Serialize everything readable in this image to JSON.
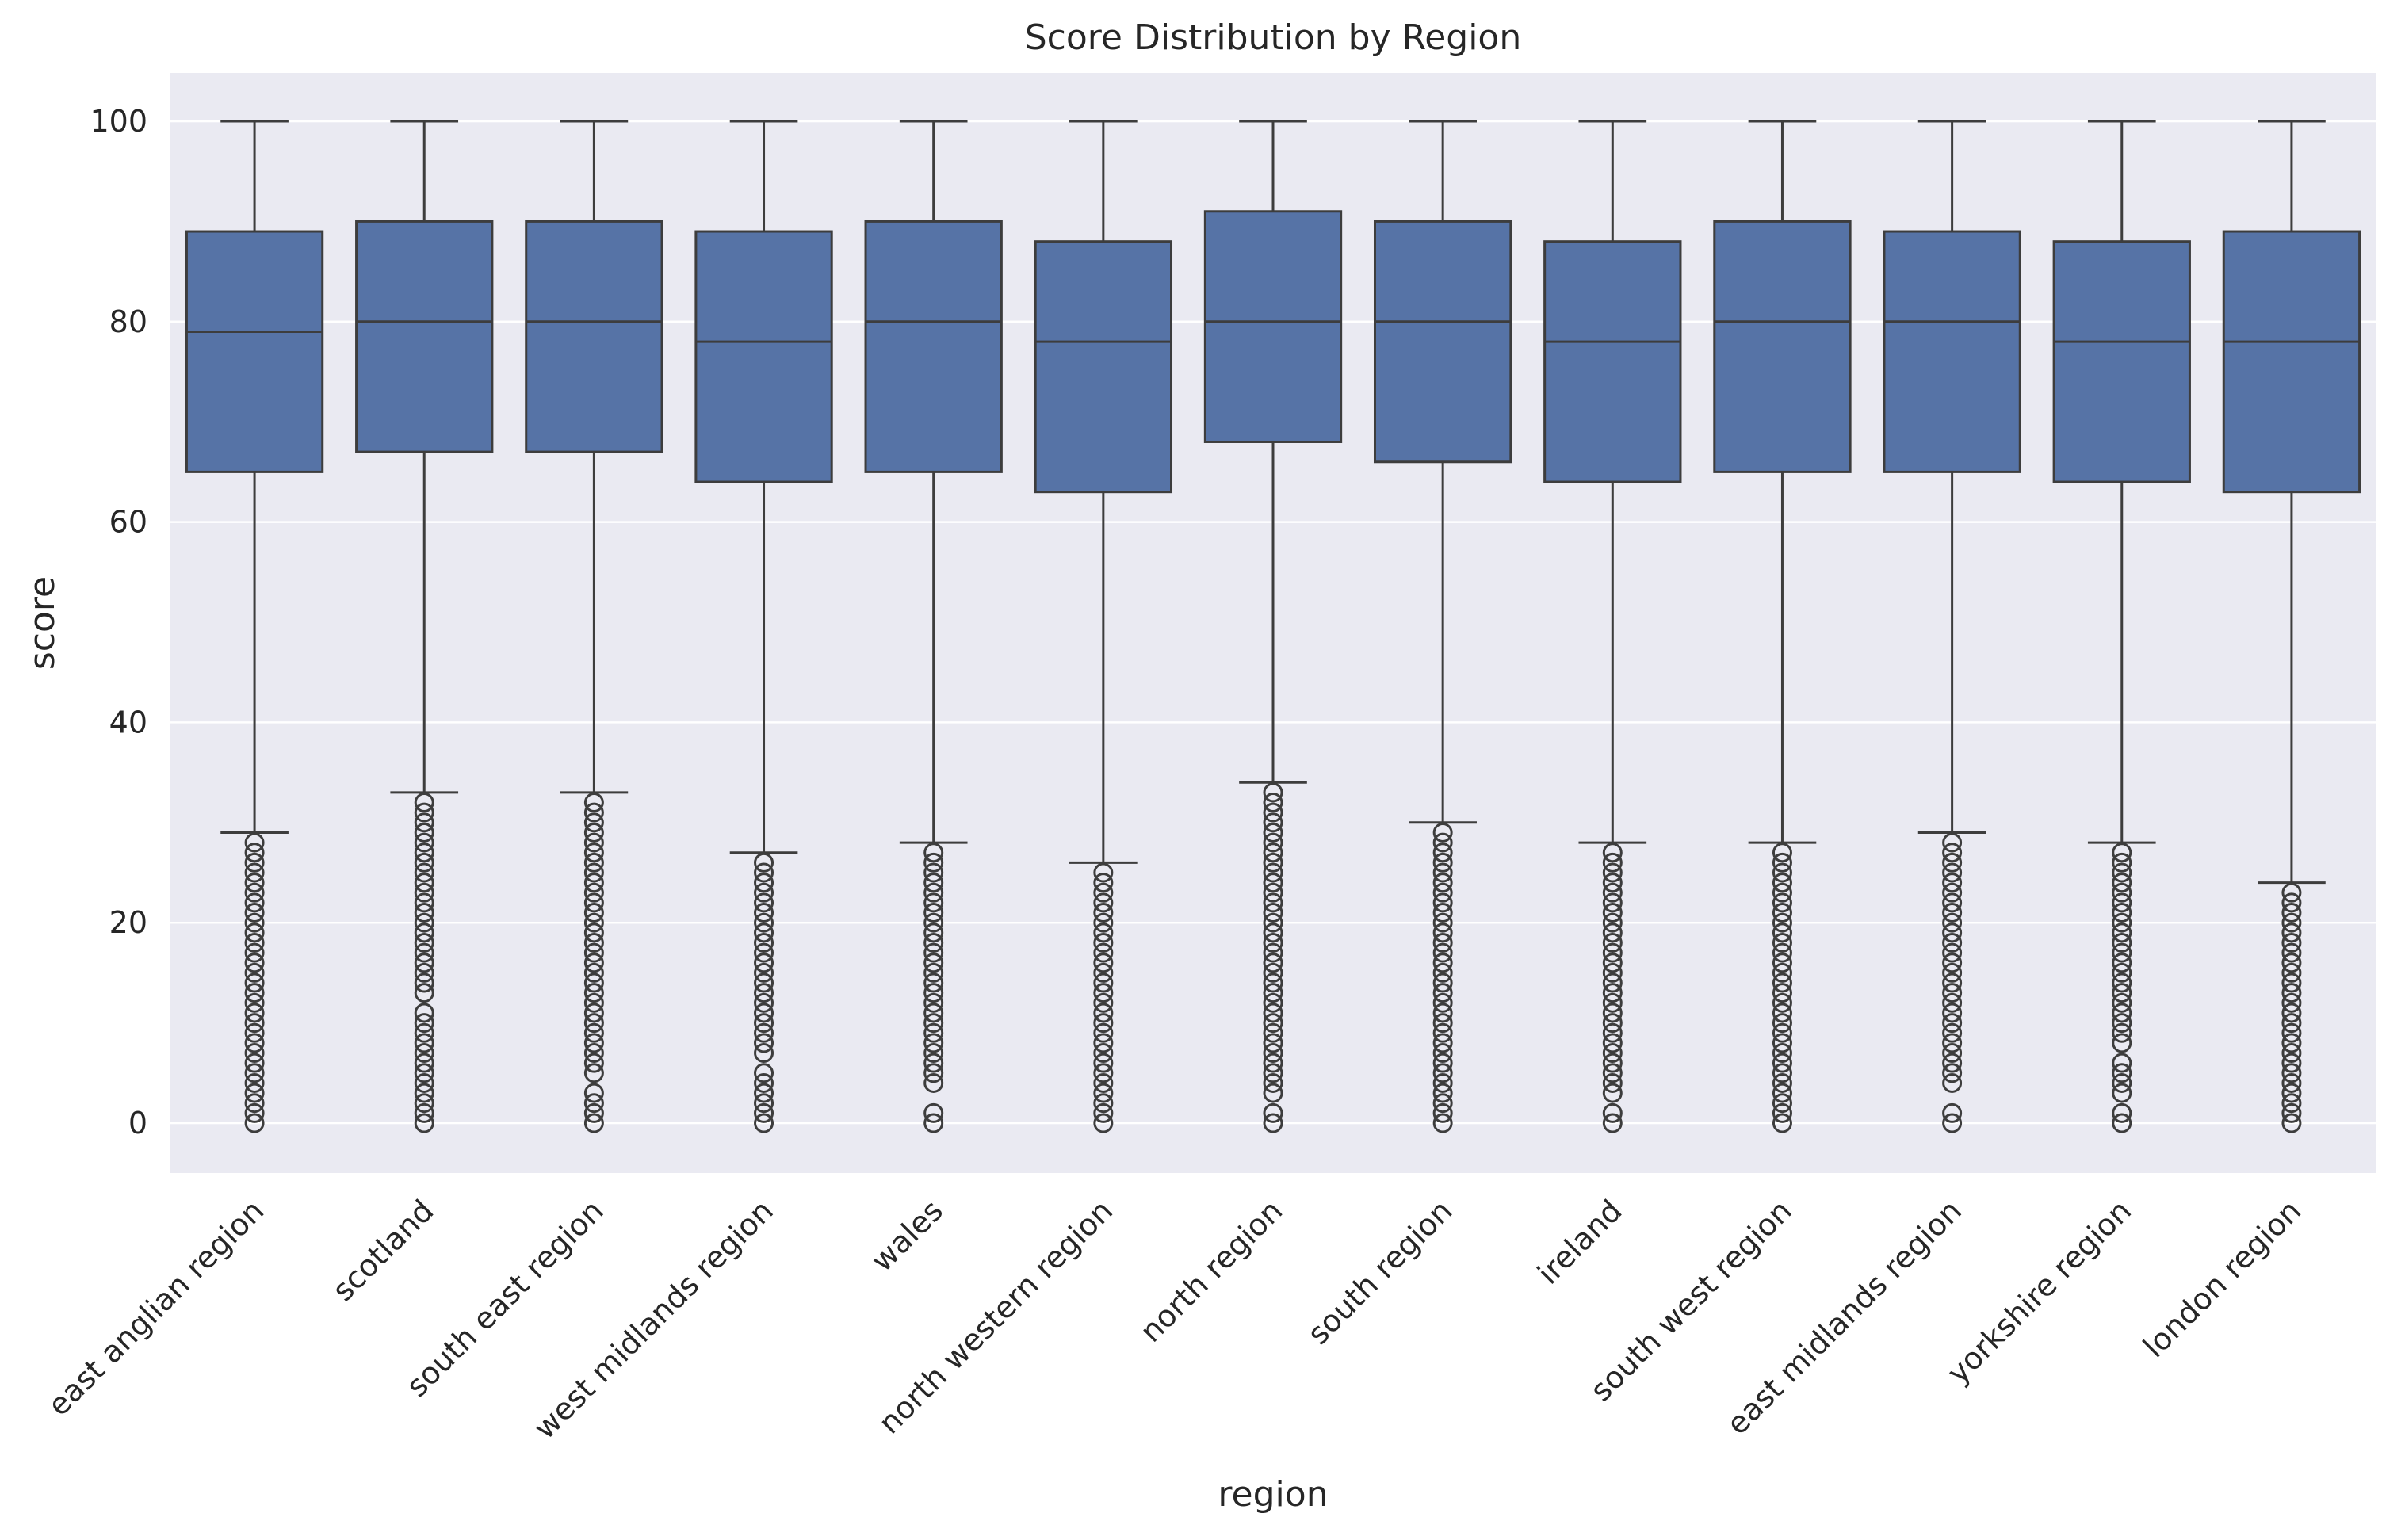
{
  "chart_data": {
    "type": "box",
    "title": "Score Distribution by Region",
    "xlabel": "region",
    "ylabel": "score",
    "ylim": [
      -5,
      105
    ],
    "yticks": [
      0,
      20,
      40,
      60,
      80,
      100
    ],
    "grid": true,
    "colors": {
      "box": "#5673a6",
      "edge": "#3d3d3d",
      "background": "#eaeaf2",
      "grid": "#ffffff"
    },
    "categories": [
      "east anglian region",
      "scotland",
      "south east region",
      "west midlands region",
      "wales",
      "north western region",
      "north region",
      "south region",
      "ireland",
      "south west region",
      "east midlands region",
      "yorkshire region",
      "london region"
    ],
    "boxes": [
      {
        "whislo": 29,
        "q1": 65,
        "med": 79,
        "q3": 89,
        "whishi": 100,
        "fliers": [
          0,
          1,
          2,
          3,
          4,
          5,
          6,
          7,
          8,
          9,
          10,
          11,
          12,
          13,
          14,
          15,
          16,
          17,
          18,
          19,
          20,
          21,
          22,
          23,
          24,
          25,
          26,
          27,
          28
        ]
      },
      {
        "whislo": 33,
        "q1": 67,
        "med": 80,
        "q3": 90,
        "whishi": 100,
        "fliers": [
          0,
          1,
          2,
          3,
          4,
          5,
          6,
          7,
          8,
          9,
          10,
          11,
          13,
          14,
          15,
          16,
          17,
          18,
          19,
          20,
          21,
          22,
          23,
          24,
          25,
          26,
          27,
          28,
          29,
          30,
          31,
          32
        ]
      },
      {
        "whislo": 33,
        "q1": 67,
        "med": 80,
        "q3": 90,
        "whishi": 100,
        "fliers": [
          0,
          1,
          2,
          3,
          5,
          6,
          7,
          8,
          9,
          10,
          11,
          12,
          13,
          14,
          15,
          16,
          17,
          18,
          19,
          20,
          21,
          22,
          23,
          24,
          25,
          26,
          27,
          28,
          29,
          30,
          31,
          32
        ]
      },
      {
        "whislo": 27,
        "q1": 64,
        "med": 78,
        "q3": 89,
        "whishi": 100,
        "fliers": [
          0,
          1,
          2,
          3,
          4,
          5,
          7,
          8,
          9,
          10,
          11,
          12,
          13,
          14,
          15,
          16,
          17,
          18,
          19,
          20,
          21,
          22,
          23,
          24,
          25,
          26
        ]
      },
      {
        "whislo": 28,
        "q1": 65,
        "med": 80,
        "q3": 90,
        "whishi": 100,
        "fliers": [
          0,
          1,
          4,
          5,
          6,
          7,
          8,
          9,
          10,
          11,
          12,
          13,
          14,
          15,
          16,
          17,
          18,
          19,
          20,
          21,
          22,
          23,
          24,
          25,
          26,
          27
        ]
      },
      {
        "whislo": 26,
        "q1": 63,
        "med": 78,
        "q3": 88,
        "whishi": 100,
        "fliers": [
          0,
          1,
          2,
          3,
          4,
          5,
          6,
          7,
          8,
          9,
          10,
          11,
          12,
          13,
          14,
          15,
          16,
          17,
          18,
          19,
          20,
          21,
          22,
          23,
          24,
          25
        ]
      },
      {
        "whislo": 34,
        "q1": 68,
        "med": 80,
        "q3": 91,
        "whishi": 100,
        "fliers": [
          0,
          1,
          3,
          4,
          5,
          6,
          7,
          8,
          9,
          10,
          11,
          12,
          13,
          14,
          15,
          16,
          17,
          18,
          19,
          20,
          21,
          22,
          23,
          24,
          25,
          26,
          27,
          28,
          29,
          30,
          31,
          32,
          33
        ]
      },
      {
        "whislo": 30,
        "q1": 66,
        "med": 80,
        "q3": 90,
        "whishi": 100,
        "fliers": [
          0,
          1,
          2,
          3,
          4,
          5,
          6,
          7,
          8,
          9,
          10,
          11,
          12,
          13,
          14,
          15,
          16,
          17,
          18,
          19,
          20,
          21,
          22,
          23,
          24,
          25,
          26,
          27,
          28,
          29
        ]
      },
      {
        "whislo": 28,
        "q1": 64,
        "med": 78,
        "q3": 88,
        "whishi": 100,
        "fliers": [
          0,
          1,
          3,
          4,
          5,
          6,
          7,
          8,
          9,
          10,
          11,
          12,
          13,
          14,
          15,
          16,
          17,
          18,
          19,
          20,
          21,
          22,
          23,
          24,
          25,
          26,
          27
        ]
      },
      {
        "whislo": 28,
        "q1": 65,
        "med": 80,
        "q3": 90,
        "whishi": 100,
        "fliers": [
          0,
          1,
          2,
          3,
          4,
          5,
          6,
          7,
          8,
          9,
          10,
          11,
          12,
          13,
          14,
          15,
          16,
          17,
          18,
          19,
          20,
          21,
          22,
          23,
          24,
          25,
          26,
          27
        ]
      },
      {
        "whislo": 29,
        "q1": 65,
        "med": 80,
        "q3": 89,
        "whishi": 100,
        "fliers": [
          0,
          1,
          4,
          5,
          6,
          7,
          8,
          9,
          10,
          11,
          12,
          13,
          14,
          15,
          16,
          17,
          18,
          19,
          20,
          21,
          22,
          23,
          24,
          25,
          26,
          27,
          28
        ]
      },
      {
        "whislo": 28,
        "q1": 64,
        "med": 78,
        "q3": 88,
        "whishi": 100,
        "fliers": [
          0,
          1,
          3,
          4,
          5,
          6,
          8,
          9,
          10,
          11,
          12,
          13,
          14,
          15,
          16,
          17,
          18,
          19,
          20,
          21,
          22,
          23,
          24,
          25,
          26,
          27
        ]
      },
      {
        "whislo": 24,
        "q1": 63,
        "med": 78,
        "q3": 89,
        "whishi": 100,
        "fliers": [
          0,
          1,
          2,
          3,
          4,
          5,
          6,
          7,
          8,
          9,
          10,
          11,
          12,
          13,
          14,
          15,
          16,
          17,
          18,
          19,
          20,
          21,
          22,
          23
        ]
      }
    ]
  }
}
